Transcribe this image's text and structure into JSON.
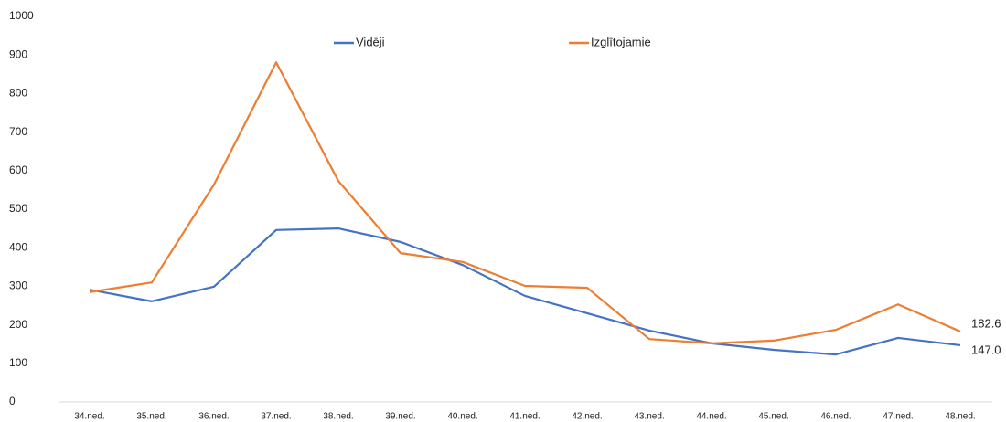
{
  "chart_data": {
    "type": "line",
    "categories": [
      "34.ned.",
      "35.ned.",
      "36.ned.",
      "37.ned.",
      "38.ned.",
      "39.ned.",
      "40.ned.",
      "41.ned.",
      "42.ned.",
      "43.ned.",
      "44.ned.",
      "45.ned.",
      "46.ned.",
      "47.ned.",
      "48.ned."
    ],
    "series": [
      {
        "name": "Vidēji",
        "color": "#4472c4",
        "values": [
          291,
          261,
          299,
          446,
          450,
          415,
          355,
          275,
          230,
          185,
          152,
          135,
          123,
          166,
          147.0
        ],
        "value_labels": [
          null,
          null,
          null,
          null,
          null,
          null,
          null,
          null,
          null,
          null,
          null,
          null,
          null,
          null,
          "147.0"
        ]
      },
      {
        "name": "Izglītojamie",
        "color": "#ed7d31",
        "values": [
          285,
          310,
          564,
          881,
          573,
          386,
          363,
          301,
          296,
          163,
          152,
          159,
          187,
          253,
          182.6
        ],
        "value_labels": [
          null,
          null,
          null,
          null,
          null,
          null,
          null,
          null,
          null,
          null,
          null,
          null,
          null,
          null,
          "182.6"
        ]
      }
    ],
    "ylim": [
      0,
      1000
    ],
    "yticks": [
      0,
      100,
      200,
      300,
      400,
      500,
      600,
      700,
      800,
      900,
      1000
    ],
    "grid": false,
    "legend": "top"
  }
}
